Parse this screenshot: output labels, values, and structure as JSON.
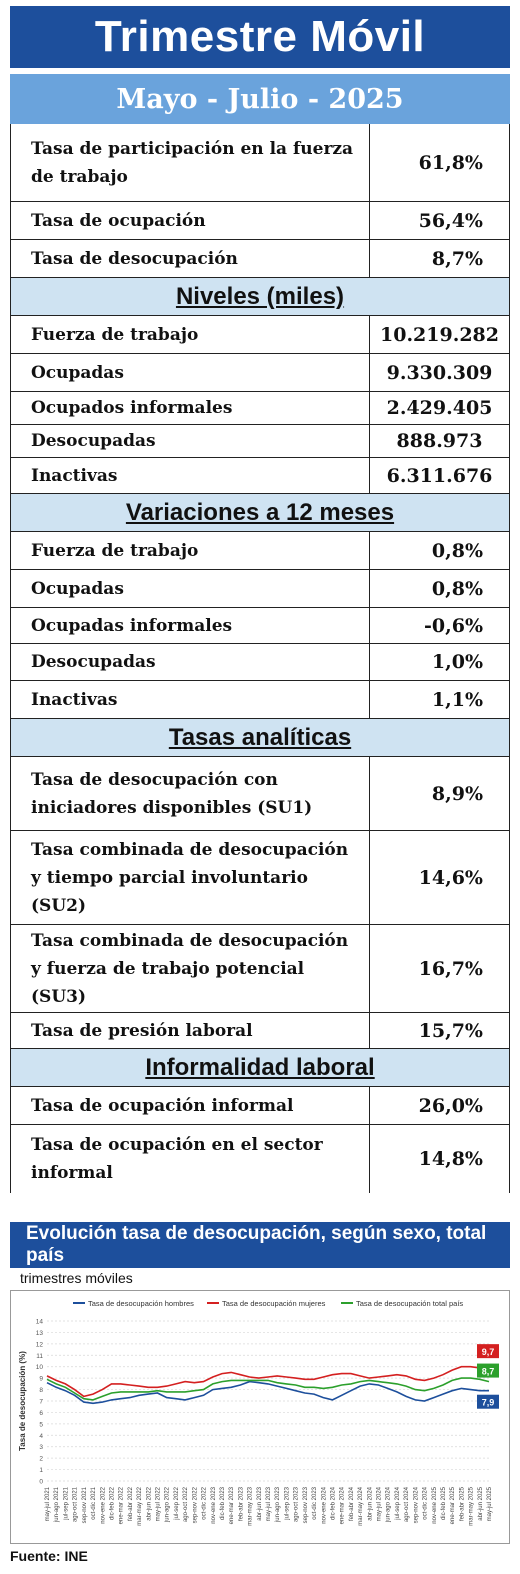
{
  "header": {
    "title": "Trimestre Móvil",
    "period": "Mayo - Julio - 2025"
  },
  "rates": [
    {
      "label": "Tasa de participación en la fuerza de trabajo",
      "value": "61,8%"
    },
    {
      "label": "Tasa de ocupación",
      "value": "56,4%"
    },
    {
      "label": "Tasa de desocupación",
      "value": "8,7%"
    }
  ],
  "levels": {
    "title": "Niveles (miles)",
    "items": [
      {
        "label": "Fuerza de trabajo",
        "value": "10.219.282"
      },
      {
        "label": "Ocupadas",
        "value": "9.330.309"
      },
      {
        "label": "Ocupados informales",
        "value": "2.429.405"
      },
      {
        "label": "Desocupadas",
        "value": "888.973"
      },
      {
        "label": "Inactivas",
        "value": "6.311.676"
      }
    ]
  },
  "variations": {
    "title": "Variaciones a 12 meses",
    "items": [
      {
        "label": "Fuerza de trabajo",
        "value": "0,8%"
      },
      {
        "label": "Ocupadas",
        "value": "0,8%"
      },
      {
        "label": "Ocupadas informales",
        "value": "-0,6%"
      },
      {
        "label": "Desocupadas",
        "value": "1,0%"
      },
      {
        "label": "Inactivas",
        "value": "1,1%"
      }
    ]
  },
  "analytic": {
    "title": "Tasas analíticas",
    "items": [
      {
        "label": "Tasa de desocupación con iniciadores disponibles (SU1)",
        "value": "8,9%"
      },
      {
        "label": "Tasa combinada de desocupación y tiempo parcial involuntario (SU2)",
        "value": "14,6%"
      },
      {
        "label": "Tasa combinada de desocupación y fuerza de trabajo potencial (SU3)",
        "value": "16,7%"
      },
      {
        "label": "Tasa de presión laboral",
        "value": "15,7%"
      }
    ]
  },
  "informality": {
    "title": "Informalidad laboral",
    "items": [
      {
        "label": "Tasa de ocupación informal",
        "value": "26,0%"
      },
      {
        "label": "Tasa de ocupación en el sector informal",
        "value": "14,8%"
      }
    ]
  },
  "chart": {
    "heading": "Evolución tasa de desocupación, según sexo, total país",
    "subtitle": "trimestres móviles"
  },
  "source": "Fuente: INE",
  "chart_data": {
    "type": "line",
    "ylabel": "Tasa de desocupación (%)",
    "ylim": [
      0,
      14
    ],
    "yticks": [
      0,
      1,
      2,
      3,
      4,
      5,
      6,
      7,
      8,
      9,
      10,
      11,
      12,
      13,
      14
    ],
    "grid": true,
    "legend_position": "top",
    "categories": [
      "may-jul 2021",
      "jun-ago 2021",
      "jul-sep 2021",
      "ago-oct 2021",
      "sep-nov 2021",
      "oct-dic 2021",
      "nov-ene 2022",
      "dic-feb 2022",
      "ene-mar 2022",
      "feb-abr 2022",
      "mar-may 2022",
      "abr-jun 2022",
      "may-jul 2022",
      "jun-ago 2022",
      "jul-sep 2022",
      "ago-oct 2022",
      "sep-nov 2022",
      "oct-dic 2022",
      "nov-ene 2023",
      "dic-feb 2023",
      "ene-mar 2023",
      "feb-abr 2023",
      "mar-may 2023",
      "abr-jun 2023",
      "may-jul 2023",
      "jun-ago 2023",
      "jul-sep 2023",
      "ago-oct 2023",
      "sep-nov 2023",
      "oct-dic 2023",
      "nov-ene 2024",
      "dic-feb 2024",
      "ene-mar 2024",
      "feb-abr 2024",
      "mar-may 2024",
      "abr-jun 2024",
      "may-jul 2024",
      "jun-ago 2024",
      "jul-sep 2024",
      "ago-oct 2024",
      "sep-nov 2024",
      "oct-dic 2024",
      "nov-ene 2025",
      "dic-feb 2025",
      "ene-mar 2025",
      "feb-abr 2025",
      "mar-may 2025",
      "abr-jun 2025",
      "may-jul 2025"
    ],
    "series": [
      {
        "name": "Tasa de desocupación hombres",
        "color": "#1d4f9c",
        "values": [
          8.6,
          8.2,
          7.9,
          7.5,
          6.9,
          6.8,
          6.9,
          7.1,
          7.2,
          7.3,
          7.5,
          7.6,
          7.7,
          7.3,
          7.2,
          7.1,
          7.3,
          7.5,
          8.0,
          8.1,
          8.2,
          8.4,
          8.7,
          8.6,
          8.5,
          8.3,
          8.1,
          7.9,
          7.7,
          7.6,
          7.3,
          7.1,
          7.5,
          7.9,
          8.3,
          8.5,
          8.4,
          8.1,
          7.8,
          7.4,
          7.1,
          7.0,
          7.3,
          7.6,
          7.9,
          8.1,
          8.0,
          7.9,
          7.9
        ]
      },
      {
        "name": "Tasa de desocupación mujeres",
        "color": "#d42020",
        "values": [
          9.2,
          8.8,
          8.5,
          8.0,
          7.4,
          7.6,
          8.0,
          8.5,
          8.5,
          8.4,
          8.3,
          8.2,
          8.2,
          8.3,
          8.5,
          8.7,
          8.6,
          8.7,
          9.1,
          9.4,
          9.5,
          9.3,
          9.1,
          9.0,
          9.1,
          9.2,
          9.1,
          9.0,
          8.9,
          8.9,
          9.1,
          9.3,
          9.4,
          9.4,
          9.2,
          9.0,
          9.1,
          9.2,
          9.3,
          9.2,
          8.9,
          8.8,
          9.0,
          9.3,
          9.7,
          10.0,
          10.0,
          9.9,
          9.7
        ]
      },
      {
        "name": "Tasa de desocupación total país",
        "color": "#2ca02c",
        "values": [
          8.9,
          8.5,
          8.2,
          7.7,
          7.2,
          7.1,
          7.4,
          7.7,
          7.8,
          7.8,
          7.8,
          7.8,
          7.9,
          7.8,
          7.8,
          7.8,
          7.9,
          8.0,
          8.5,
          8.7,
          8.8,
          8.8,
          8.8,
          8.8,
          8.8,
          8.6,
          8.5,
          8.4,
          8.2,
          8.2,
          8.1,
          8.2,
          8.4,
          8.5,
          8.7,
          8.8,
          8.7,
          8.6,
          8.5,
          8.3,
          8.0,
          7.9,
          8.1,
          8.4,
          8.8,
          9.0,
          9.0,
          8.9,
          8.7
        ]
      }
    ],
    "end_labels": [
      {
        "series": "Tasa de desocupación mujeres",
        "text": "9,7"
      },
      {
        "series": "Tasa de desocupación total país",
        "text": "8,7"
      },
      {
        "series": "Tasa de desocupación hombres",
        "text": "7,9"
      }
    ]
  }
}
